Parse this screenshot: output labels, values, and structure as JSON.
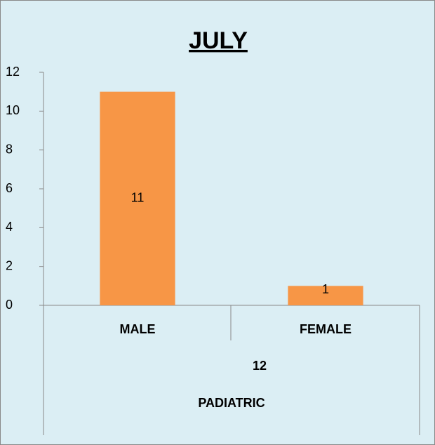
{
  "chart_data": {
    "type": "bar",
    "title": "JULY",
    "categories": [
      "MALE",
      "FEMALE"
    ],
    "values": [
      11,
      1
    ],
    "color": "#f79646",
    "group_labels": [
      "12",
      "PADIATRIC"
    ],
    "ylim": [
      0,
      12
    ],
    "yticks": [
      0,
      2,
      4,
      6,
      8,
      10,
      12
    ],
    "grid": false,
    "data_labels": true
  }
}
